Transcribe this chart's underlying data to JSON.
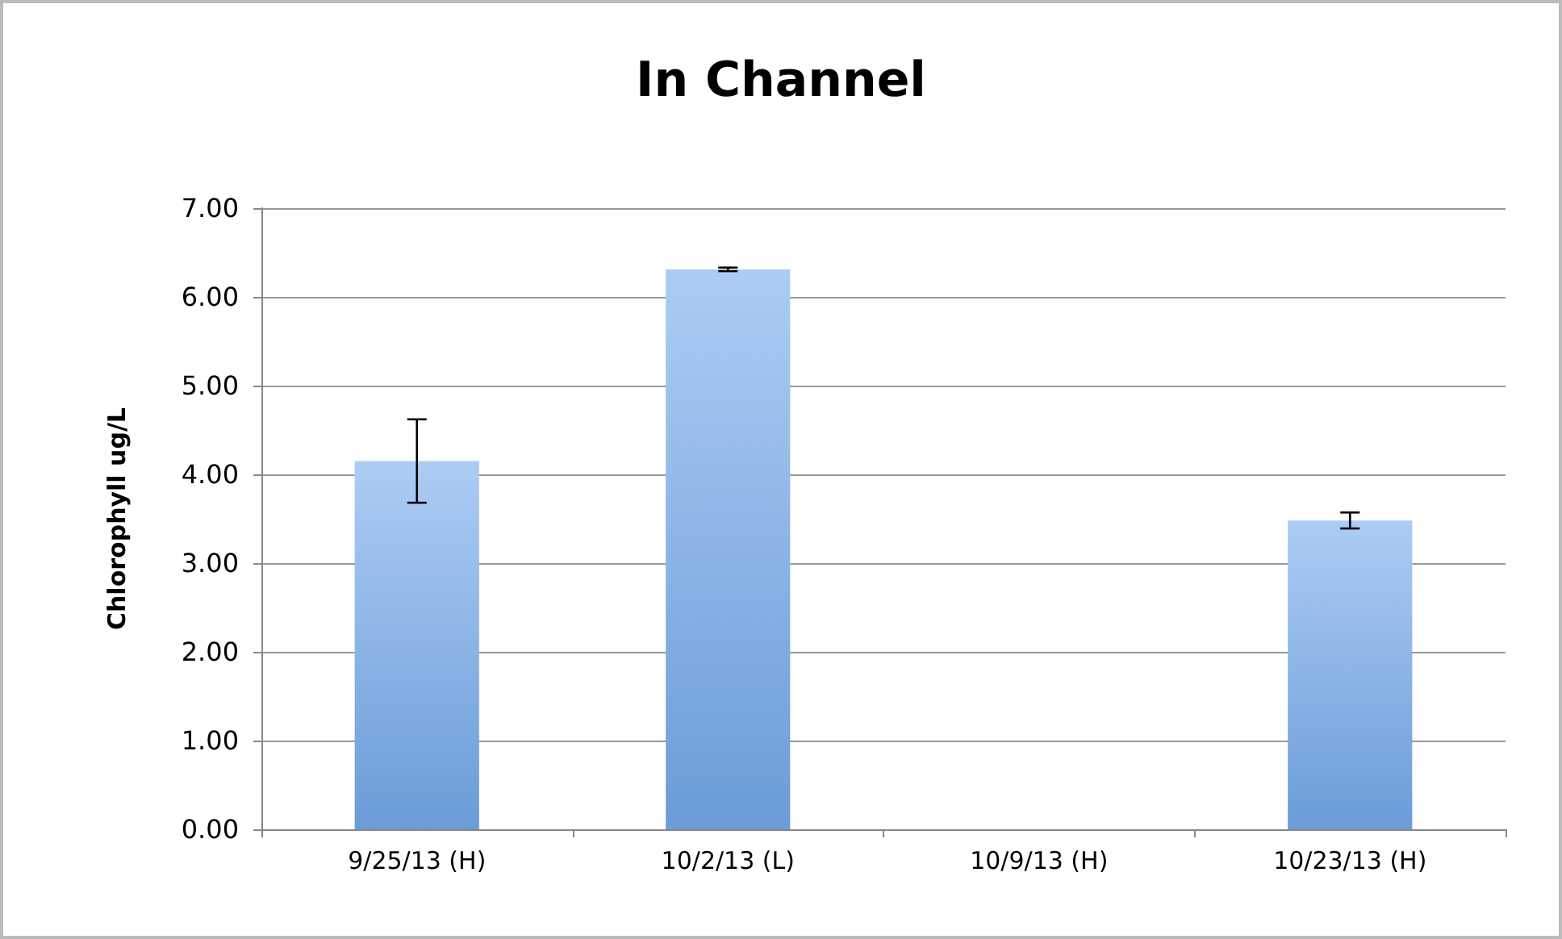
{
  "chart_data": {
    "type": "bar",
    "title": "In Channel",
    "ylabel": "Chlorophyll ug/L",
    "categories": [
      "9/25/13 (H)",
      "10/2/13 (L)",
      "10/9/13 (H)",
      "10/23/13 (H)"
    ],
    "values": [
      4.15,
      6.31,
      0,
      3.48
    ],
    "errors": [
      0.47,
      0.02,
      null,
      0.09
    ],
    "color": "#74aaeb",
    "ylim": [
      0,
      7
    ],
    "yticks": [
      {
        "value": 0,
        "label": "0.00"
      },
      {
        "value": 1,
        "label": "1.00"
      },
      {
        "value": 2,
        "label": "2.00"
      },
      {
        "value": 3,
        "label": "3.00"
      },
      {
        "value": 4,
        "label": "4.00"
      },
      {
        "value": 5,
        "label": "5.00"
      },
      {
        "value": 6,
        "label": "6.00"
      },
      {
        "value": 7,
        "label": "7.00"
      }
    ],
    "grid": "y"
  }
}
